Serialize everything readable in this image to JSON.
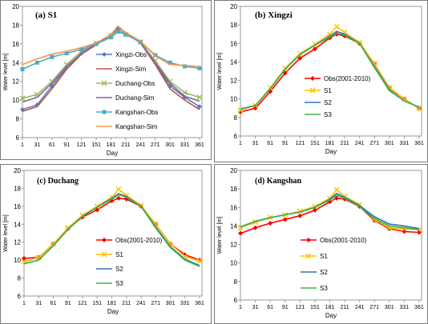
{
  "colors": {
    "grid_border": "#9a9a9a",
    "panel_border": "#7a7a7a",
    "text": "#000000"
  },
  "chart_data": [
    {
      "id": "a",
      "type": "line",
      "title": "(a) S1",
      "xlabel": "Day",
      "ylabel": "Water level [m]",
      "xlim": [
        1,
        366
      ],
      "ylim": [
        6,
        20
      ],
      "xticks": [
        1,
        31,
        61,
        91,
        121,
        151,
        181,
        211,
        241,
        271,
        301,
        331,
        361
      ],
      "yticks": [
        6,
        8,
        10,
        12,
        14,
        16,
        18,
        20
      ],
      "grid": false,
      "legend_position": "center-right",
      "series": [
        {
          "name": "Xingzi-Obs",
          "color": "#4f81bd",
          "marker": "diamond",
          "x": [
            1,
            31,
            61,
            91,
            121,
            151,
            181,
            195,
            211,
            241,
            271,
            301,
            331,
            361
          ],
          "y": [
            9.0,
            9.5,
            11.5,
            13.5,
            15.0,
            16.0,
            16.9,
            17.5,
            17.0,
            16.2,
            14.0,
            11.5,
            10.3,
            9.3
          ]
        },
        {
          "name": "Xingzi-Sim",
          "color": "#c0504d",
          "marker": "none",
          "x": [
            1,
            31,
            61,
            91,
            121,
            151,
            181,
            195,
            211,
            241,
            271,
            301,
            331,
            361
          ],
          "y": [
            8.8,
            9.3,
            11.2,
            13.3,
            14.9,
            15.9,
            17.0,
            17.8,
            17.2,
            16.1,
            13.8,
            11.2,
            10.0,
            9.0
          ]
        },
        {
          "name": "Duchang-Obs",
          "color": "#9bbb59",
          "marker": "x",
          "x": [
            1,
            31,
            61,
            91,
            121,
            151,
            181,
            195,
            211,
            241,
            271,
            301,
            331,
            361
          ],
          "y": [
            10.2,
            10.6,
            12.0,
            13.8,
            15.2,
            16.1,
            16.9,
            17.4,
            17.0,
            16.2,
            14.2,
            12.0,
            10.8,
            10.3
          ]
        },
        {
          "name": "Duchang-Sim",
          "color": "#8064a2",
          "marker": "none",
          "x": [
            1,
            31,
            61,
            91,
            121,
            151,
            181,
            195,
            211,
            241,
            271,
            301,
            331,
            361
          ],
          "y": [
            9.8,
            10.3,
            11.8,
            13.6,
            15.0,
            16.0,
            17.0,
            17.8,
            17.2,
            16.1,
            14.0,
            11.8,
            10.4,
            9.9
          ]
        },
        {
          "name": "Kangshan-Obs",
          "color": "#4bacc6",
          "marker": "square",
          "x": [
            1,
            31,
            61,
            91,
            121,
            151,
            181,
            195,
            211,
            241,
            271,
            301,
            331,
            361
          ],
          "y": [
            13.3,
            14.0,
            14.6,
            15.0,
            15.4,
            16.0,
            16.7,
            17.3,
            17.0,
            16.2,
            14.8,
            14.0,
            13.6,
            13.4
          ]
        },
        {
          "name": "Kangshan-Sim",
          "color": "#f79646",
          "marker": "none",
          "x": [
            1,
            31,
            61,
            91,
            121,
            151,
            181,
            195,
            211,
            241,
            271,
            301,
            331,
            361
          ],
          "y": [
            13.8,
            14.4,
            14.9,
            15.2,
            15.6,
            16.1,
            17.0,
            17.9,
            17.2,
            16.3,
            14.7,
            13.8,
            13.7,
            13.6
          ]
        }
      ]
    },
    {
      "id": "b",
      "type": "line",
      "title": "(b) Xingzi",
      "xlabel": "Day",
      "ylabel": "Water level [m]",
      "xlim": [
        1,
        366
      ],
      "ylim": [
        6,
        20
      ],
      "xticks": [
        1,
        31,
        61,
        91,
        121,
        151,
        181,
        211,
        241,
        271,
        301,
        331,
        361
      ],
      "yticks": [
        6,
        8,
        10,
        12,
        14,
        16,
        18,
        20
      ],
      "grid": false,
      "legend_position": "center-left",
      "series": [
        {
          "name": "Obs(2001-2010)",
          "color": "#ff0000",
          "marker": "diamond",
          "x": [
            1,
            31,
            61,
            91,
            121,
            151,
            181,
            195,
            211,
            241,
            271,
            301,
            331,
            361
          ],
          "y": [
            8.6,
            9.0,
            10.8,
            12.8,
            14.4,
            15.4,
            16.6,
            17.0,
            16.8,
            16.0,
            13.8,
            11.2,
            10.0,
            9.0
          ]
        },
        {
          "name": "S1",
          "color": "#ffc000",
          "marker": "x",
          "x": [
            1,
            31,
            61,
            91,
            121,
            151,
            181,
            195,
            211,
            241,
            271,
            301,
            331,
            361
          ],
          "y": [
            8.8,
            9.3,
            11.2,
            13.3,
            14.9,
            15.9,
            17.0,
            17.8,
            17.2,
            16.1,
            13.8,
            11.2,
            10.0,
            9.0
          ]
        },
        {
          "name": "S2",
          "color": "#2e75b6",
          "marker": "none",
          "x": [
            1,
            31,
            61,
            91,
            121,
            151,
            181,
            195,
            211,
            241,
            271,
            301,
            331,
            361
          ],
          "y": [
            8.9,
            9.3,
            11.1,
            13.2,
            14.8,
            15.8,
            16.8,
            17.3,
            17.0,
            16.0,
            13.5,
            11.0,
            9.8,
            9.1
          ]
        },
        {
          "name": "S3",
          "color": "#3cb34a",
          "marker": "none",
          "x": [
            1,
            31,
            61,
            91,
            121,
            151,
            181,
            195,
            211,
            241,
            271,
            301,
            331,
            361
          ],
          "y": [
            8.9,
            9.3,
            11.1,
            13.2,
            14.8,
            15.8,
            16.7,
            17.1,
            16.9,
            16.0,
            13.4,
            10.9,
            9.8,
            9.1
          ]
        }
      ]
    },
    {
      "id": "c",
      "type": "line",
      "title": "(c) Duchang",
      "xlabel": "Day",
      "ylabel": "Water level [m]",
      "xlim": [
        1,
        366
      ],
      "ylim": [
        6,
        20
      ],
      "xticks": [
        1,
        31,
        61,
        91,
        121,
        151,
        181,
        211,
        241,
        271,
        301,
        331,
        361
      ],
      "yticks": [
        6,
        8,
        10,
        12,
        14,
        16,
        18,
        20
      ],
      "grid": false,
      "legend_position": "center-right",
      "series": [
        {
          "name": "Obs(2001-2010)",
          "color": "#ff0000",
          "marker": "diamond",
          "x": [
            1,
            31,
            61,
            91,
            121,
            151,
            181,
            195,
            211,
            241,
            271,
            301,
            331,
            361
          ],
          "y": [
            10.2,
            10.3,
            11.8,
            13.5,
            14.8,
            15.6,
            16.6,
            16.9,
            16.8,
            16.0,
            14.0,
            11.8,
            10.6,
            10.0
          ]
        },
        {
          "name": "S1",
          "color": "#ffc000",
          "marker": "x",
          "x": [
            1,
            31,
            61,
            91,
            121,
            151,
            181,
            195,
            211,
            241,
            271,
            301,
            331,
            361
          ],
          "y": [
            9.8,
            10.3,
            11.8,
            13.6,
            15.0,
            16.0,
            17.0,
            17.9,
            17.2,
            16.1,
            14.0,
            11.8,
            10.4,
            9.9
          ]
        },
        {
          "name": "S2",
          "color": "#2e75b6",
          "marker": "none",
          "x": [
            1,
            31,
            61,
            91,
            121,
            151,
            181,
            195,
            211,
            241,
            271,
            301,
            331,
            361
          ],
          "y": [
            9.6,
            10.0,
            11.6,
            13.4,
            14.9,
            15.9,
            16.9,
            17.4,
            17.1,
            16.0,
            13.7,
            11.5,
            10.1,
            9.4
          ]
        },
        {
          "name": "S3",
          "color": "#3cb34a",
          "marker": "none",
          "x": [
            1,
            31,
            61,
            91,
            121,
            151,
            181,
            195,
            211,
            241,
            271,
            301,
            331,
            361
          ],
          "y": [
            9.6,
            10.0,
            11.6,
            13.4,
            14.9,
            15.9,
            16.8,
            17.3,
            17.0,
            16.0,
            13.6,
            11.4,
            10.0,
            9.3
          ]
        }
      ]
    },
    {
      "id": "d",
      "type": "line",
      "title": "(d) Kangshan",
      "xlabel": "Day",
      "ylabel": "Water level [m]",
      "xlim": [
        1,
        366
      ],
      "ylim": [
        6,
        20
      ],
      "xticks": [
        1,
        31,
        61,
        91,
        121,
        151,
        181,
        211,
        241,
        271,
        301,
        331,
        361
      ],
      "yticks": [
        6,
        8,
        10,
        12,
        14,
        16,
        18,
        20
      ],
      "grid": false,
      "legend_position": "center-left",
      "series": [
        {
          "name": "Obs(2001-2010)",
          "color": "#ff0000",
          "marker": "diamond",
          "x": [
            1,
            31,
            61,
            91,
            121,
            151,
            181,
            195,
            211,
            241,
            271,
            301,
            331,
            361
          ],
          "y": [
            13.2,
            13.8,
            14.3,
            14.7,
            15.1,
            15.7,
            16.6,
            17.0,
            16.9,
            16.1,
            14.6,
            13.7,
            13.4,
            13.3
          ]
        },
        {
          "name": "S1",
          "color": "#ffc000",
          "marker": "x",
          "x": [
            1,
            31,
            61,
            91,
            121,
            151,
            181,
            195,
            211,
            241,
            271,
            301,
            331,
            361
          ],
          "y": [
            13.8,
            14.4,
            14.9,
            15.2,
            15.6,
            16.1,
            17.0,
            17.9,
            17.2,
            16.3,
            14.7,
            13.8,
            13.7,
            13.6
          ]
        },
        {
          "name": "S2",
          "color": "#2e75b6",
          "marker": "none",
          "x": [
            1,
            31,
            61,
            91,
            121,
            151,
            181,
            195,
            211,
            241,
            271,
            301,
            331,
            361
          ],
          "y": [
            13.9,
            14.5,
            14.9,
            15.2,
            15.5,
            16.0,
            16.9,
            17.5,
            17.1,
            16.2,
            15.0,
            14.2,
            14.0,
            13.7
          ]
        },
        {
          "name": "S3",
          "color": "#3cb34a",
          "marker": "none",
          "x": [
            1,
            31,
            61,
            91,
            121,
            151,
            181,
            195,
            211,
            241,
            271,
            301,
            331,
            361
          ],
          "y": [
            13.9,
            14.5,
            14.9,
            15.2,
            15.5,
            16.0,
            16.8,
            17.3,
            17.0,
            16.1,
            14.8,
            14.0,
            13.8,
            13.6
          ]
        }
      ]
    }
  ]
}
